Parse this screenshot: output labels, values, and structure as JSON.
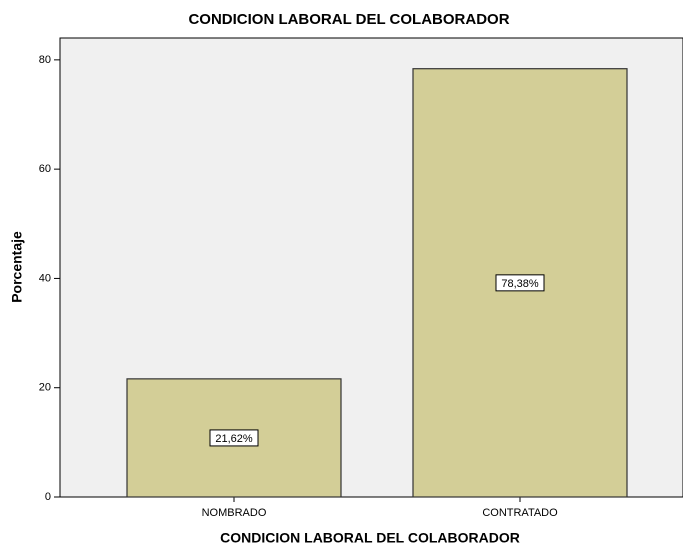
{
  "chart_data": {
    "type": "bar",
    "title": "CONDICION LABORAL DEL COLABORADOR",
    "x_label": "CONDICION LABORAL DEL COLABORADOR",
    "y_label": "Porcentaje",
    "categories": [
      "NOMBRADO",
      "CONTRATADO"
    ],
    "values": [
      21.62,
      78.38
    ],
    "value_labels": [
      "21,62%",
      "78,38%"
    ],
    "color": "#d3ce97",
    "ylim": [
      0,
      84
    ],
    "yticks": [
      0,
      20,
      40,
      60,
      80
    ],
    "grid": false
  }
}
